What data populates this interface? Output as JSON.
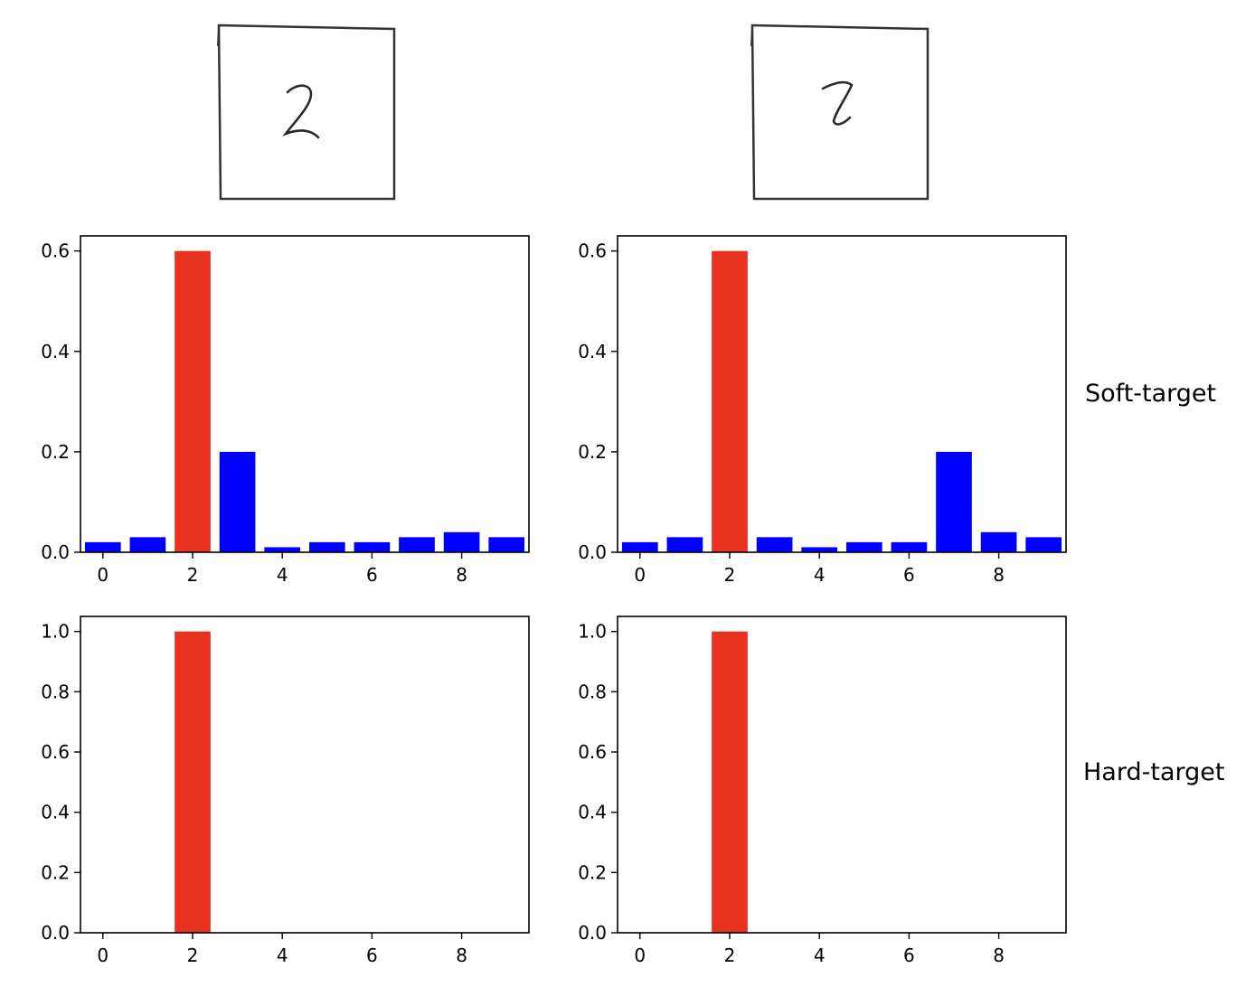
{
  "row_labels": {
    "soft": "Soft-target",
    "hard": "Hard-target"
  },
  "digit_images": [
    {
      "name": "handwritten-digit-2",
      "digit": "2"
    },
    {
      "name": "handwritten-digit-2-resembling-7",
      "digit": "2"
    }
  ],
  "colors": {
    "highlight": "#e8321f",
    "default": "#0000ff",
    "axis": "#000000"
  },
  "chart_data": [
    {
      "type": "bar",
      "panel": "soft-target-left",
      "categories": [
        0,
        1,
        2,
        3,
        4,
        5,
        6,
        7,
        8,
        9
      ],
      "values": [
        0.02,
        0.03,
        0.6,
        0.2,
        0.01,
        0.02,
        0.02,
        0.03,
        0.04,
        0.03
      ],
      "highlight_index": 2,
      "xlim": [
        -0.5,
        9.5
      ],
      "ylim": [
        0,
        0.63
      ],
      "xticks": [
        0,
        2,
        4,
        6,
        8
      ],
      "yticks": [
        0.0,
        0.2,
        0.4,
        0.6
      ],
      "ytick_labels": [
        "0.0",
        "0.2",
        "0.4",
        "0.6"
      ],
      "grid": false
    },
    {
      "type": "bar",
      "panel": "soft-target-right",
      "categories": [
        0,
        1,
        2,
        3,
        4,
        5,
        6,
        7,
        8,
        9
      ],
      "values": [
        0.02,
        0.03,
        0.6,
        0.03,
        0.01,
        0.02,
        0.02,
        0.2,
        0.04,
        0.03
      ],
      "highlight_index": 2,
      "xlim": [
        -0.5,
        9.5
      ],
      "ylim": [
        0,
        0.63
      ],
      "xticks": [
        0,
        2,
        4,
        6,
        8
      ],
      "yticks": [
        0.0,
        0.2,
        0.4,
        0.6
      ],
      "ytick_labels": [
        "0.0",
        "0.2",
        "0.4",
        "0.6"
      ],
      "grid": false
    },
    {
      "type": "bar",
      "panel": "hard-target-left",
      "categories": [
        0,
        1,
        2,
        3,
        4,
        5,
        6,
        7,
        8,
        9
      ],
      "values": [
        0,
        0,
        1.0,
        0,
        0,
        0,
        0,
        0,
        0,
        0
      ],
      "highlight_index": 2,
      "xlim": [
        -0.5,
        9.5
      ],
      "ylim": [
        0,
        1.05
      ],
      "xticks": [
        0,
        2,
        4,
        6,
        8
      ],
      "yticks": [
        0.0,
        0.2,
        0.4,
        0.6,
        0.8,
        1.0
      ],
      "ytick_labels": [
        "0.0",
        "0.2",
        "0.4",
        "0.6",
        "0.8",
        "1.0"
      ],
      "grid": false
    },
    {
      "type": "bar",
      "panel": "hard-target-right",
      "categories": [
        0,
        1,
        2,
        3,
        4,
        5,
        6,
        7,
        8,
        9
      ],
      "values": [
        0,
        0,
        1.0,
        0,
        0,
        0,
        0,
        0,
        0,
        0
      ],
      "highlight_index": 2,
      "xlim": [
        -0.5,
        9.5
      ],
      "ylim": [
        0,
        1.05
      ],
      "xticks": [
        0,
        2,
        4,
        6,
        8
      ],
      "yticks": [
        0.0,
        0.2,
        0.4,
        0.6,
        0.8,
        1.0
      ],
      "ytick_labels": [
        "0.0",
        "0.2",
        "0.4",
        "0.6",
        "0.8",
        "1.0"
      ],
      "grid": false
    }
  ]
}
